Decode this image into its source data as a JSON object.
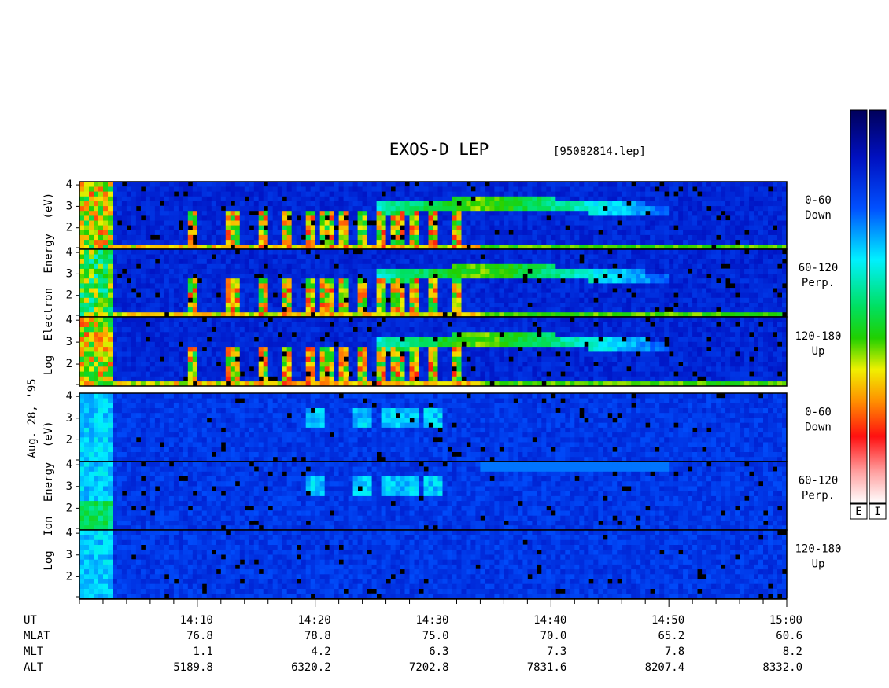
{
  "chart_data": {
    "type": "spectrogram",
    "title": "EXOS-D LEP",
    "subtitle": "[95082814.lep]",
    "date_label": "Aug. 28, '95",
    "xlim": [
      0,
      60
    ],
    "xticks": [
      {
        "value": 10,
        "label": "14:10"
      },
      {
        "value": 20,
        "label": "14:20"
      },
      {
        "value": 30,
        "label": "14:30"
      },
      {
        "value": 40,
        "label": "14:40"
      },
      {
        "value": 50,
        "label": "14:50"
      },
      {
        "value": 60,
        "label": "15:00"
      }
    ],
    "xminor_ticks": [
      0,
      2,
      4,
      6,
      8,
      12,
      14,
      16,
      18,
      22,
      24,
      26,
      28,
      32,
      34,
      36,
      38,
      42,
      44,
      46,
      48,
      52,
      54,
      56,
      58
    ],
    "x_axis_name": "UT",
    "ephemeris": [
      {
        "name": "MLAT",
        "values": [
          "76.8",
          "78.8",
          "75.0",
          "70.0",
          "65.2",
          "60.6"
        ]
      },
      {
        "name": "MLT",
        "values": [
          "1.1",
          "4.2",
          "6.3",
          "7.3",
          "7.8",
          "8.2"
        ]
      },
      {
        "name": "ALT",
        "values": [
          "5189.8",
          "6320.2",
          "7202.8",
          "7831.6",
          "8207.4",
          "8332.0"
        ]
      }
    ],
    "ylim": [
      1,
      4.15
    ],
    "yticks": [
      2,
      3,
      4
    ],
    "groups": [
      {
        "ylabel": "Log Electron Energy (eV)",
        "species": "electron",
        "panels": [
          {
            "label": "0-60",
            "sublabel": "Down"
          },
          {
            "label": "60-120",
            "sublabel": "Perp."
          },
          {
            "label": "120-180",
            "sublabel": "Up"
          }
        ]
      },
      {
        "ylabel": "Log Ion Energy (eV)",
        "species": "ion",
        "panels": [
          {
            "label": "0-60",
            "sublabel": "Down"
          },
          {
            "label": "60-120",
            "sublabel": "Perp."
          },
          {
            "label": "120-180",
            "sublabel": "Up"
          }
        ]
      }
    ],
    "colorbars": [
      "E",
      "I"
    ]
  }
}
